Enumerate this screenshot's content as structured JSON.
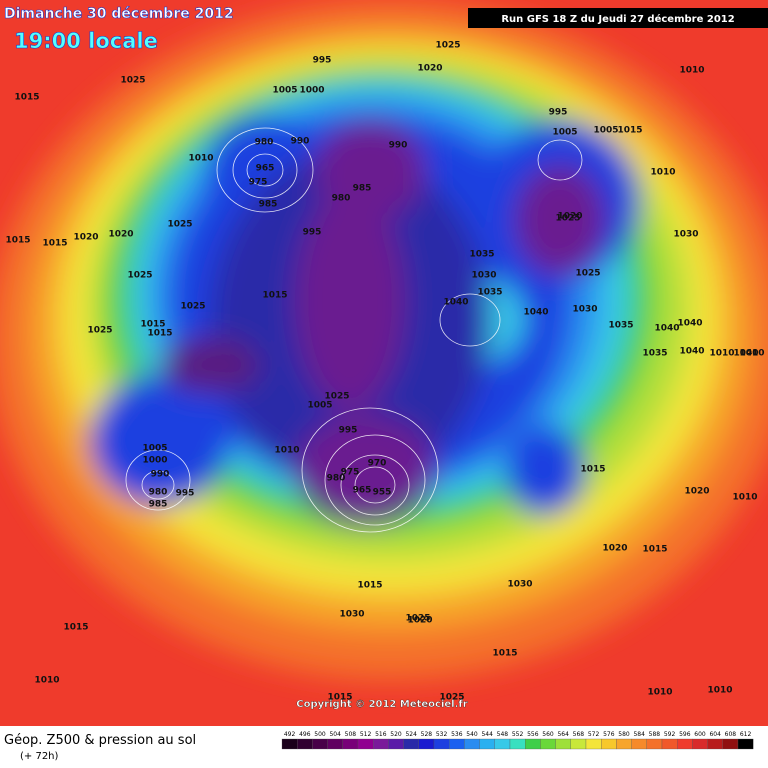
{
  "header": {
    "date": "Dimanche 30 décembre 2012",
    "time": "19:00 locale",
    "run": "Run GFS 18 Z du Jeudi 27 décembre 2012"
  },
  "map": {
    "copyright": "Copyright © 2012 Meteociel.fr",
    "pressure_labels": [
      "1025",
      "995",
      "1020",
      "1010",
      "1025",
      "1015",
      "1005",
      "1000",
      "995",
      "1005",
      "1005",
      "1015",
      "980",
      "990",
      "990",
      "965",
      "975",
      "985",
      "1010",
      "980",
      "985",
      "995",
      "1020",
      "1025",
      "1025",
      "1015",
      "1015",
      "1020",
      "1025",
      "1025",
      "1025",
      "1015",
      "1015",
      "1015",
      "1035",
      "1030",
      "1035",
      "1040",
      "1040",
      "1030",
      "1035",
      "1040",
      "1040",
      "1030",
      "1025",
      "1020",
      "1010",
      "1040",
      "1035",
      "1040",
      "1010",
      "1010",
      "1025",
      "1005",
      "995",
      "1010",
      "970",
      "980",
      "975",
      "965",
      "955",
      "1005",
      "1000",
      "990",
      "980",
      "985",
      "995",
      "1015",
      "1020",
      "1020",
      "1015",
      "1020",
      "1015",
      "1030",
      "1030",
      "1025",
      "1015",
      "1015",
      "1010",
      "1010",
      "1010",
      "1010",
      "1025",
      "1015"
    ]
  },
  "footer": {
    "title": "Géop. Z500 & pression au sol",
    "lead": "(+ 72h)",
    "scale": [
      492,
      496,
      500,
      504,
      508,
      512,
      516,
      520,
      524,
      528,
      532,
      536,
      540,
      544,
      548,
      552,
      556,
      560,
      564,
      568,
      572,
      576,
      580,
      584,
      588,
      592,
      596,
      600,
      604,
      608,
      612
    ]
  }
}
